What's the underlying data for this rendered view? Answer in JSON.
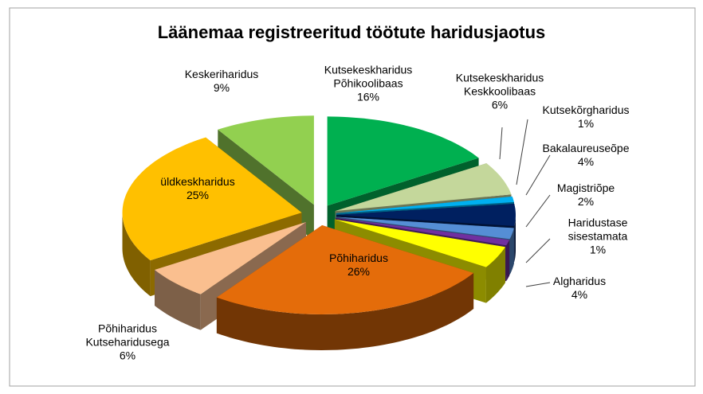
{
  "chart_data": {
    "type": "pie3d",
    "title": "Läänemaa registreeritud töötute haridusjaotus",
    "categories": [
      "Kutsekeskharidus\nPõhikoolibaas",
      "Kutsekeskharidus\nKeskkoolibaas",
      "Kutsekõrgharidus",
      "Bakalaureuseõpe",
      "Magistriõpe",
      "Haridustase\nsisestamata",
      "Algharidus",
      "Põhiharidus",
      "Põhiharidus\nKutseharidusega",
      "üldkeskharidus",
      "Keskeriharidus"
    ],
    "values": [
      16,
      6,
      1,
      4,
      2,
      1,
      4,
      26,
      6,
      25,
      9
    ],
    "value_labels": [
      "16%",
      "6%",
      "1%",
      "4%",
      "2%",
      "1%",
      "4%",
      "26%",
      "6%",
      "25%",
      "9%"
    ],
    "colors": [
      "#00b050",
      "#c4d79b",
      "#00b0f0",
      "#002060",
      "#558ed5",
      "#7030a0",
      "#ffff00",
      "#e46c0a",
      "#fabf8f",
      "#ffc000",
      "#92d050"
    ]
  }
}
